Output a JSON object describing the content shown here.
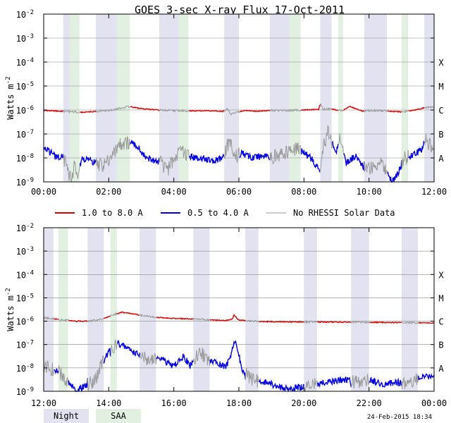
{
  "chart_data": {
    "type": "line",
    "title": "GOES 3-sec X-ray Flux   17-Oct-2011",
    "ylabel": "Watts m",
    "ylabel_sup": "-2",
    "yscale": "log",
    "ylim": [
      1e-09,
      0.01
    ],
    "y_ticks": [
      {
        "base": "10",
        "exp": "-9"
      },
      {
        "base": "10",
        "exp": "-8"
      },
      {
        "base": "10",
        "exp": "-7"
      },
      {
        "base": "10",
        "exp": "-6"
      },
      {
        "base": "10",
        "exp": "-5"
      },
      {
        "base": "10",
        "exp": "-4"
      },
      {
        "base": "10",
        "exp": "-3"
      },
      {
        "base": "10",
        "exp": "-2"
      }
    ],
    "flare_classes": [
      {
        "label": "A",
        "value": 1e-08
      },
      {
        "label": "B",
        "value": 1e-07
      },
      {
        "label": "C",
        "value": 1e-06
      },
      {
        "label": "M",
        "value": 1e-05
      },
      {
        "label": "X",
        "value": 0.0001
      }
    ],
    "legend": [
      {
        "label": "1.0 to 8.0 A",
        "color": "#e00000"
      },
      {
        "label": "0.5 to 4.0 A",
        "color": "#0000e0"
      },
      {
        "label": "No RHESSI Solar Data",
        "color": "#999999"
      }
    ],
    "band_legend": [
      {
        "label": "Night",
        "color": "#e2e2f0"
      },
      {
        "label": "SAA",
        "color": "#e2f0e2"
      }
    ],
    "footer_timestamp": "24-Feb-2015 18:34",
    "colors": {
      "long": "#e00000",
      "short": "#0000e0",
      "no_data": "#999999",
      "night": "#e2e2f0",
      "saa": "#e2f0e2",
      "grid": "#888888"
    },
    "panels": [
      {
        "x_ticks": [
          "00:00",
          "02:00",
          "04:00",
          "06:00",
          "08:00",
          "10:00",
          "12:00"
        ],
        "x_range_hours": [
          0,
          12
        ],
        "night": [
          [
            0.6,
            0.8
          ],
          [
            1.6,
            2.25
          ],
          [
            3.55,
            4.15
          ],
          [
            5.55,
            6.0
          ],
          [
            6.95,
            7.55
          ],
          [
            8.5,
            8.85
          ],
          [
            9.85,
            10.55
          ],
          [
            11.7,
            12.0
          ]
        ],
        "saa": [
          [
            0.8,
            1.1
          ],
          [
            2.25,
            2.65
          ],
          [
            4.15,
            4.45
          ],
          [
            7.55,
            7.9
          ],
          [
            9.05,
            9.2
          ],
          [
            11.0,
            11.2
          ]
        ],
        "long": [
          [
            0,
            -6.02
          ],
          [
            0.5,
            -6.05
          ],
          [
            0.8,
            -6.07
          ],
          [
            1.2,
            -6.1
          ],
          [
            1.7,
            -6.05
          ],
          [
            2.0,
            -6.02
          ],
          [
            2.3,
            -5.95
          ],
          [
            2.6,
            -5.85
          ],
          [
            2.9,
            -5.92
          ],
          [
            3.3,
            -5.98
          ],
          [
            3.8,
            -6.02
          ],
          [
            4.5,
            -6.04
          ],
          [
            5.0,
            -6.03
          ],
          [
            5.5,
            -6.06
          ],
          [
            5.65,
            -5.95
          ],
          [
            5.75,
            -6.2
          ],
          [
            5.9,
            -6.1
          ],
          [
            6.2,
            -6.02
          ],
          [
            6.5,
            -6.05
          ],
          [
            7.0,
            -6.02
          ],
          [
            7.5,
            -6.02
          ],
          [
            8.0,
            -6.0
          ],
          [
            8.45,
            -5.98
          ],
          [
            8.5,
            -5.75
          ],
          [
            8.6,
            -5.98
          ],
          [
            8.8,
            -5.95
          ],
          [
            9.0,
            -6.0
          ],
          [
            9.2,
            -6.02
          ],
          [
            9.4,
            -5.85
          ],
          [
            9.5,
            -5.9
          ],
          [
            9.8,
            -6.05
          ],
          [
            10.2,
            -6.02
          ],
          [
            10.6,
            -6.05
          ],
          [
            11.0,
            -6.08
          ],
          [
            11.4,
            -6.0
          ],
          [
            11.8,
            -5.88
          ],
          [
            12.0,
            -5.9
          ]
        ],
        "short": [
          [
            0,
            -7.6
          ],
          [
            0.2,
            -7.75
          ],
          [
            0.4,
            -8.0
          ],
          [
            0.55,
            -7.9
          ],
          [
            0.7,
            -8.3
          ],
          [
            0.85,
            -9.0
          ],
          [
            0.95,
            -8.2
          ],
          [
            1.05,
            -8.6
          ],
          [
            1.2,
            -8.0
          ],
          [
            1.4,
            -8.1
          ],
          [
            1.6,
            -8.2
          ],
          [
            1.8,
            -8.3
          ],
          [
            2.0,
            -8.1
          ],
          [
            2.2,
            -7.8
          ],
          [
            2.3,
            -7.45
          ],
          [
            2.6,
            -7.35
          ],
          [
            2.9,
            -7.55
          ],
          [
            3.1,
            -7.95
          ],
          [
            3.3,
            -8.05
          ],
          [
            3.6,
            -8.2
          ],
          [
            3.8,
            -8.5
          ],
          [
            4.0,
            -8.1
          ],
          [
            4.1,
            -7.9
          ],
          [
            4.3,
            -7.75
          ],
          [
            4.6,
            -8.0
          ],
          [
            4.9,
            -8.0
          ],
          [
            5.2,
            -8.15
          ],
          [
            5.5,
            -8.0
          ],
          [
            5.65,
            -7.5
          ],
          [
            5.75,
            -7.3
          ],
          [
            5.85,
            -8.0
          ],
          [
            6.1,
            -7.8
          ],
          [
            6.4,
            -8.0
          ],
          [
            6.8,
            -7.9
          ],
          [
            7.0,
            -7.95
          ],
          [
            7.3,
            -7.9
          ],
          [
            7.6,
            -7.7
          ],
          [
            7.8,
            -7.6
          ],
          [
            8.0,
            -7.8
          ],
          [
            8.2,
            -8.0
          ],
          [
            8.5,
            -8.5
          ],
          [
            8.6,
            -7.5
          ],
          [
            8.75,
            -6.9
          ],
          [
            8.9,
            -7.5
          ],
          [
            9.0,
            -7.7
          ],
          [
            9.1,
            -7.2
          ],
          [
            9.3,
            -8.2
          ],
          [
            9.6,
            -7.9
          ],
          [
            9.9,
            -8.5
          ],
          [
            10.1,
            -8.4
          ],
          [
            10.4,
            -8.2
          ],
          [
            10.7,
            -9.0
          ],
          [
            10.9,
            -8.6
          ],
          [
            11.1,
            -8.0
          ],
          [
            11.3,
            -7.9
          ],
          [
            11.6,
            -7.7
          ],
          [
            11.75,
            -7.2
          ],
          [
            11.9,
            -7.5
          ],
          [
            12.0,
            -7.6
          ]
        ]
      },
      {
        "x_ticks": [
          "12:00",
          "14:00",
          "16:00",
          "18:00",
          "20:00",
          "22:00",
          "00:00"
        ],
        "x_range_hours": [
          12,
          24
        ],
        "night": [
          [
            12.0,
            12.3
          ],
          [
            13.35,
            13.85
          ],
          [
            14.95,
            15.45
          ],
          [
            16.6,
            17.1
          ],
          [
            18.2,
            18.6
          ],
          [
            20.0,
            20.4
          ],
          [
            21.45,
            22.0
          ],
          [
            23.0,
            23.5
          ]
        ],
        "saa": [
          [
            12.45,
            12.75
          ],
          [
            14.05,
            14.25
          ]
        ],
        "long": [
          [
            12.0,
            -5.85
          ],
          [
            12.3,
            -5.9
          ],
          [
            12.6,
            -5.95
          ],
          [
            13.0,
            -6.0
          ],
          [
            13.4,
            -6.0
          ],
          [
            13.8,
            -5.92
          ],
          [
            14.2,
            -5.7
          ],
          [
            14.4,
            -5.62
          ],
          [
            14.8,
            -5.7
          ],
          [
            15.2,
            -5.8
          ],
          [
            15.6,
            -5.85
          ],
          [
            16.0,
            -5.88
          ],
          [
            16.4,
            -5.9
          ],
          [
            16.8,
            -5.92
          ],
          [
            17.2,
            -5.95
          ],
          [
            17.6,
            -5.98
          ],
          [
            17.8,
            -5.9
          ],
          [
            17.85,
            -5.75
          ],
          [
            18.0,
            -5.95
          ],
          [
            18.4,
            -6.0
          ],
          [
            19.0,
            -6.02
          ],
          [
            19.6,
            -6.03
          ],
          [
            20.2,
            -6.03
          ],
          [
            21.0,
            -6.04
          ],
          [
            22.0,
            -6.05
          ],
          [
            22.8,
            -6.06
          ],
          [
            23.5,
            -6.07
          ],
          [
            24.0,
            -6.08
          ]
        ],
        "short": [
          [
            12.0,
            -7.9
          ],
          [
            12.2,
            -8.05
          ],
          [
            12.4,
            -8.1
          ],
          [
            12.6,
            -8.4
          ],
          [
            12.8,
            -8.7
          ],
          [
            13.0,
            -9.0
          ],
          [
            13.2,
            -8.8
          ],
          [
            13.4,
            -8.7
          ],
          [
            13.6,
            -8.5
          ],
          [
            13.8,
            -7.8
          ],
          [
            14.0,
            -7.3
          ],
          [
            14.2,
            -7.0
          ],
          [
            14.3,
            -6.95
          ],
          [
            14.6,
            -7.2
          ],
          [
            15.0,
            -7.5
          ],
          [
            15.3,
            -7.7
          ],
          [
            15.6,
            -7.6
          ],
          [
            15.9,
            -7.9
          ],
          [
            16.1,
            -7.8
          ],
          [
            16.3,
            -7.5
          ],
          [
            16.5,
            -7.9
          ],
          [
            16.8,
            -7.3
          ],
          [
            17.0,
            -7.6
          ],
          [
            17.3,
            -7.8
          ],
          [
            17.6,
            -8.0
          ],
          [
            17.85,
            -7.0
          ],
          [
            17.9,
            -6.85
          ],
          [
            18.1,
            -8.1
          ],
          [
            18.4,
            -8.5
          ],
          [
            18.8,
            -8.6
          ],
          [
            19.2,
            -8.8
          ],
          [
            19.6,
            -8.9
          ],
          [
            20.0,
            -8.8
          ],
          [
            20.4,
            -8.7
          ],
          [
            20.8,
            -8.6
          ],
          [
            21.2,
            -8.5
          ],
          [
            21.6,
            -8.6
          ],
          [
            22.0,
            -8.5
          ],
          [
            22.4,
            -8.7
          ],
          [
            22.8,
            -8.6
          ],
          [
            23.2,
            -8.7
          ],
          [
            23.6,
            -8.4
          ],
          [
            24.0,
            -8.3
          ]
        ]
      }
    ]
  }
}
